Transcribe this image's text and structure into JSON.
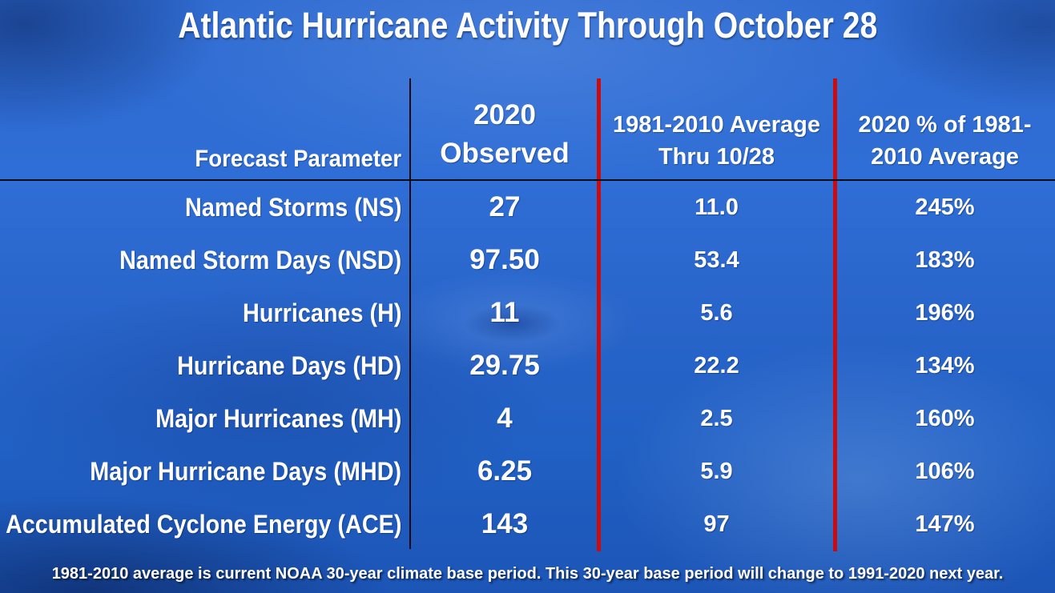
{
  "chart_data": {
    "type": "table",
    "title": "Atlantic Hurricane Activity Through October 28",
    "column_headers": {
      "param": "Forecast Parameter",
      "observed": [
        "2020",
        "Observed"
      ],
      "average": [
        "1981-2010 Average",
        "Thru 10/28"
      ],
      "percent": [
        "2020 % of 1981-",
        "2010 Average"
      ]
    },
    "rows": [
      {
        "param": "Named Storms (NS)",
        "observed": "27",
        "average": "11.0",
        "percent": "245%"
      },
      {
        "param": "Named Storm Days (NSD)",
        "observed": "97.50",
        "average": "53.4",
        "percent": "183%"
      },
      {
        "param": "Hurricanes (H)",
        "observed": "11",
        "average": "5.6",
        "percent": "196%"
      },
      {
        "param": "Hurricane Days (HD)",
        "observed": "29.75",
        "average": "22.2",
        "percent": "134%"
      },
      {
        "param": "Major Hurricanes (MH)",
        "observed": "4",
        "average": "2.5",
        "percent": "160%"
      },
      {
        "param": "Major Hurricane Days (MHD)",
        "observed": "6.25",
        "average": "5.9",
        "percent": "106%"
      },
      {
        "param": "Accumulated Cyclone Energy (ACE)",
        "observed": "143",
        "average": "97",
        "percent": "147%"
      }
    ],
    "footnote": "1981-2010 average is current NOAA 30-year climate base period. This 30-year base period will change to 1991-2020 next year.",
    "layout_hints": {
      "grid": "off",
      "legend": "none"
    }
  },
  "colors": {
    "red_divider": "#cc0b0f",
    "black_divider": "#000000",
    "text": "#ffffff",
    "background_blue": "#2b67cd"
  }
}
